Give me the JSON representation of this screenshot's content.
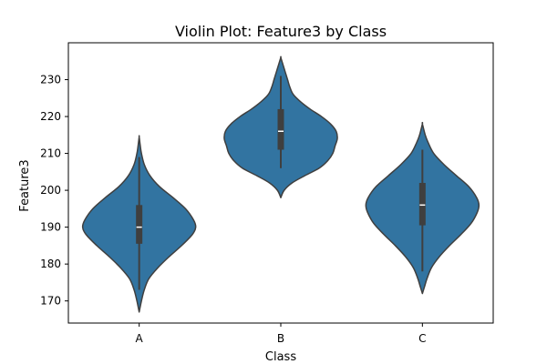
{
  "chart_data": {
    "type": "violin",
    "title": "Violin Plot: Feature3 by Class",
    "xlabel": "Class",
    "ylabel": "Feature3",
    "categories": [
      "A",
      "B",
      "C"
    ],
    "ylim": [
      164,
      240
    ],
    "yticks": [
      170,
      180,
      190,
      200,
      210,
      220,
      230
    ],
    "grid": false,
    "color": "#3274a1",
    "outline_color": "#3f3f3f",
    "violins": [
      {
        "category": "A",
        "min": 173,
        "q1": 185.5,
        "median": 190,
        "q3": 196,
        "max": 209,
        "kde_range": [
          167,
          214.5
        ],
        "profile": [
          [
            167,
            0.0
          ],
          [
            170,
            0.04
          ],
          [
            173,
            0.09
          ],
          [
            176,
            0.17
          ],
          [
            179,
            0.33
          ],
          [
            182,
            0.53
          ],
          [
            185,
            0.75
          ],
          [
            188,
            0.94
          ],
          [
            190,
            1.0
          ],
          [
            192,
            0.96
          ],
          [
            195,
            0.82
          ],
          [
            198,
            0.6
          ],
          [
            201,
            0.36
          ],
          [
            204,
            0.19
          ],
          [
            207,
            0.09
          ],
          [
            210,
            0.04
          ],
          [
            212,
            0.02
          ],
          [
            214.5,
            0.0
          ]
        ]
      },
      {
        "category": "B",
        "min": 206,
        "q1": 211,
        "median": 216,
        "q3": 222,
        "max": 231,
        "kde_range": [
          198,
          236
        ],
        "profile": [
          [
            198,
            0.0
          ],
          [
            200,
            0.06
          ],
          [
            202,
            0.2
          ],
          [
            204,
            0.43
          ],
          [
            206,
            0.68
          ],
          [
            208,
            0.83
          ],
          [
            210,
            0.92
          ],
          [
            212,
            0.96
          ],
          [
            214,
            1.0
          ],
          [
            216,
            0.98
          ],
          [
            218,
            0.88
          ],
          [
            220,
            0.72
          ],
          [
            222,
            0.52
          ],
          [
            224,
            0.35
          ],
          [
            226,
            0.22
          ],
          [
            228,
            0.16
          ],
          [
            230,
            0.12
          ],
          [
            232,
            0.08
          ],
          [
            234,
            0.04
          ],
          [
            236,
            0.0
          ]
        ]
      },
      {
        "category": "C",
        "min": 178,
        "q1": 190.5,
        "median": 196,
        "q3": 202,
        "max": 211,
        "kde_range": [
          172,
          218
        ],
        "profile": [
          [
            172,
            0.0
          ],
          [
            174,
            0.04
          ],
          [
            176,
            0.08
          ],
          [
            179,
            0.16
          ],
          [
            182,
            0.3
          ],
          [
            185,
            0.48
          ],
          [
            188,
            0.68
          ],
          [
            191,
            0.86
          ],
          [
            194,
            0.97
          ],
          [
            196,
            1.0
          ],
          [
            198,
            0.96
          ],
          [
            201,
            0.82
          ],
          [
            204,
            0.6
          ],
          [
            207,
            0.38
          ],
          [
            210,
            0.2
          ],
          [
            213,
            0.1
          ],
          [
            215,
            0.05
          ],
          [
            218,
            0.0
          ]
        ]
      }
    ]
  }
}
